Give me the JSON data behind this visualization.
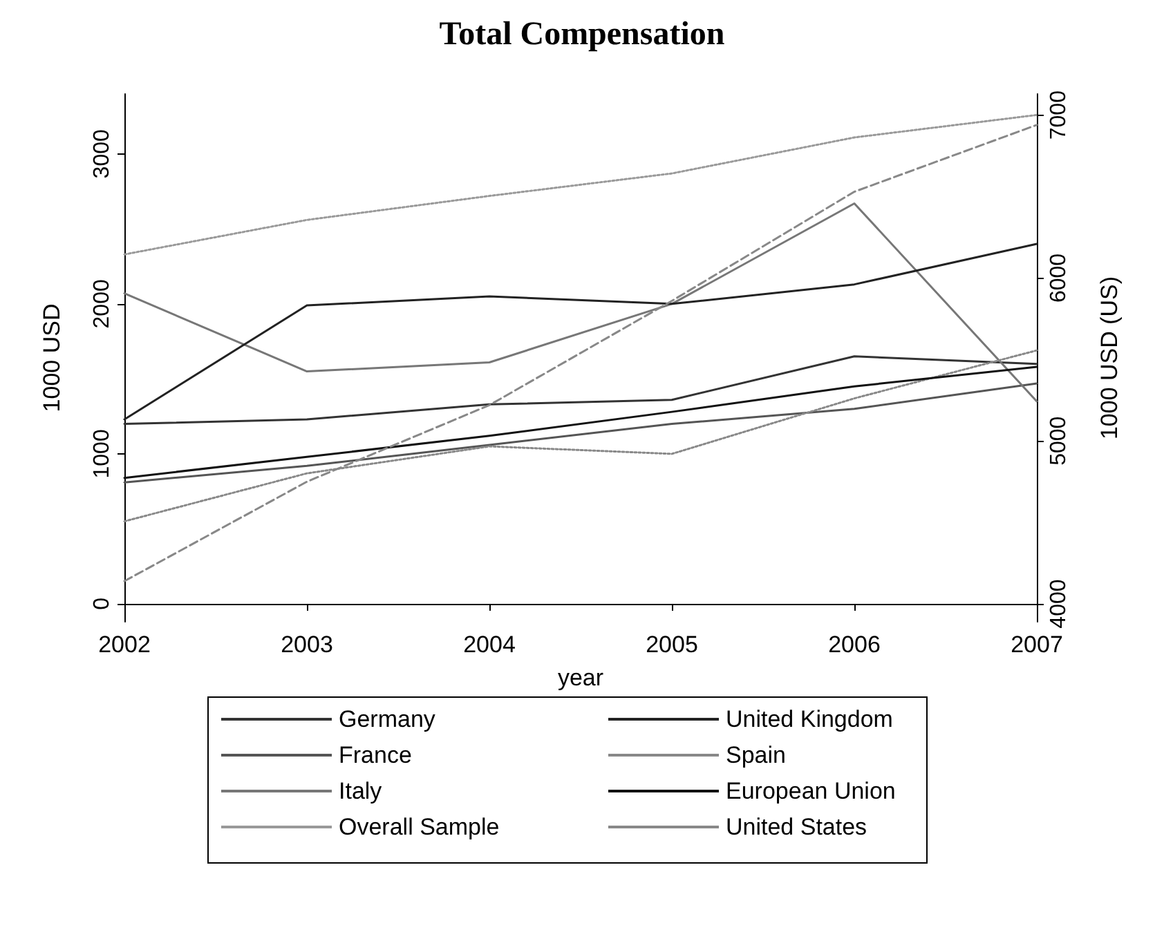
{
  "chart_data": {
    "type": "line",
    "title": "Total Compensation",
    "xlabel": "year",
    "ylabel": "1000 USD",
    "y2label": "1000 USD (US)",
    "x": [
      2002,
      2003,
      2004,
      2005,
      2006,
      2007
    ],
    "xlim": [
      2002,
      2007
    ],
    "xticks": [
      2002,
      2003,
      2004,
      2005,
      2006,
      2007
    ],
    "ylim": [
      -120,
      3400
    ],
    "yticks": [
      0,
      1000,
      2000,
      3000
    ],
    "y2lim": [
      3890,
      7130
    ],
    "y2ticks": [
      4000,
      5000,
      6000,
      7000
    ],
    "grid": false,
    "legend": "bottom",
    "marker": "none",
    "series": [
      {
        "name": "Germany",
        "color": "#333333",
        "line_style": "solid",
        "values": [
          1200,
          1230,
          1330,
          1360,
          1650,
          1600
        ]
      },
      {
        "name": "France",
        "color": "#555555",
        "line_style": "solid",
        "values": [
          810,
          920,
          1060,
          1200,
          1300,
          1470
        ]
      },
      {
        "name": "Italy",
        "color": "#777777",
        "line_style": "solid",
        "values": [
          2070,
          1550,
          1610,
          2000,
          2670,
          1350
        ]
      },
      {
        "name": "Overall Sample",
        "color": "#999999",
        "line_style": "dotted",
        "values": [
          2330,
          2560,
          2720,
          2870,
          3110,
          3260
        ]
      },
      {
        "name": "United Kingdom",
        "color": "#222222",
        "line_style": "solid",
        "values": [
          1230,
          1990,
          2050,
          2000,
          2130,
          2400
        ]
      },
      {
        "name": "Spain",
        "color": "#888888",
        "line_style": "dotted",
        "values": [
          550,
          870,
          1050,
          1000,
          1370,
          1690
        ]
      },
      {
        "name": "European Union",
        "color": "#111111",
        "line_style": "solid",
        "values": [
          840,
          980,
          1120,
          1280,
          1450,
          1580
        ]
      },
      {
        "name": "United States",
        "color": "#888888",
        "line_style": "dashed",
        "axis": "y2",
        "values": [
          4140,
          4750,
          5220,
          5860,
          6530,
          6940
        ]
      }
    ]
  }
}
